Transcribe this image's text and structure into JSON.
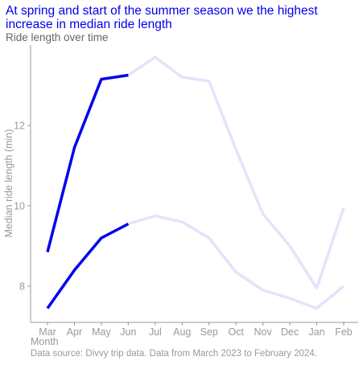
{
  "title": "At spring and start of the summer season we the highest increase in median ride length",
  "subtitle": "Ride length over time",
  "caption": "Data source: Divvy trip data. Data from March 2023 to February 2024.",
  "chart_data": {
    "type": "line",
    "xlabel": "Month",
    "ylabel": "Median ride length (min)",
    "categories": [
      "Mar",
      "Apr",
      "May",
      "Jun",
      "Jul",
      "Aug",
      "Sep",
      "Oct",
      "Nov",
      "Dec",
      "Jan",
      "Feb"
    ],
    "yticks": [
      8,
      10,
      12
    ],
    "ylim": [
      7.1,
      14.0
    ],
    "grid": false,
    "highlight_range": [
      "Mar",
      "Jun"
    ],
    "colors": {
      "highlight": "#0000ee",
      "faded": "#e3e3fb",
      "axis": "#999999"
    },
    "series": [
      {
        "values": [
          8.85,
          11.45,
          13.15,
          13.25,
          13.7,
          13.2,
          13.1,
          11.4,
          9.8,
          9.0,
          7.95,
          9.95
        ]
      },
      {
        "values": [
          7.45,
          8.4,
          9.2,
          9.55,
          9.75,
          9.6,
          9.2,
          8.35,
          7.9,
          7.7,
          7.45,
          8.0
        ]
      }
    ]
  }
}
